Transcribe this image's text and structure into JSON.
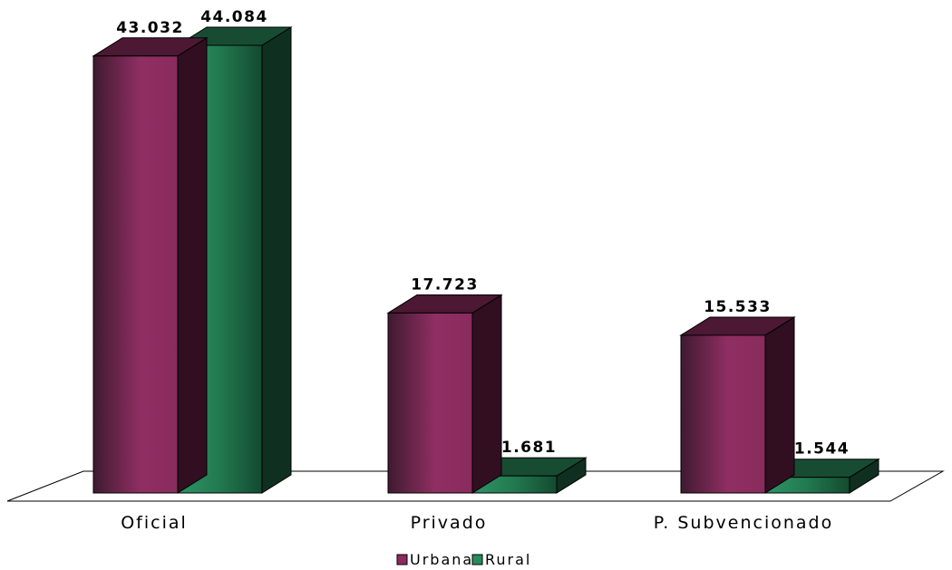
{
  "chart_data": {
    "type": "bar",
    "categories": [
      "Oficial",
      "Privado",
      "P. Subvencionado"
    ],
    "series": [
      {
        "name": "Urbana",
        "values": [
          43032,
          17723,
          15533
        ],
        "labels": [
          "43.032",
          "17.723",
          "15.533"
        ],
        "color": "#8b2b5e"
      },
      {
        "name": "Rural",
        "values": [
          44084,
          1681,
          1544
        ],
        "labels": [
          "44.084",
          "1.681",
          "1.544"
        ],
        "color": "#2a8a5c"
      }
    ],
    "legend_position": "bottom-center",
    "grid": false,
    "three_d": true
  }
}
